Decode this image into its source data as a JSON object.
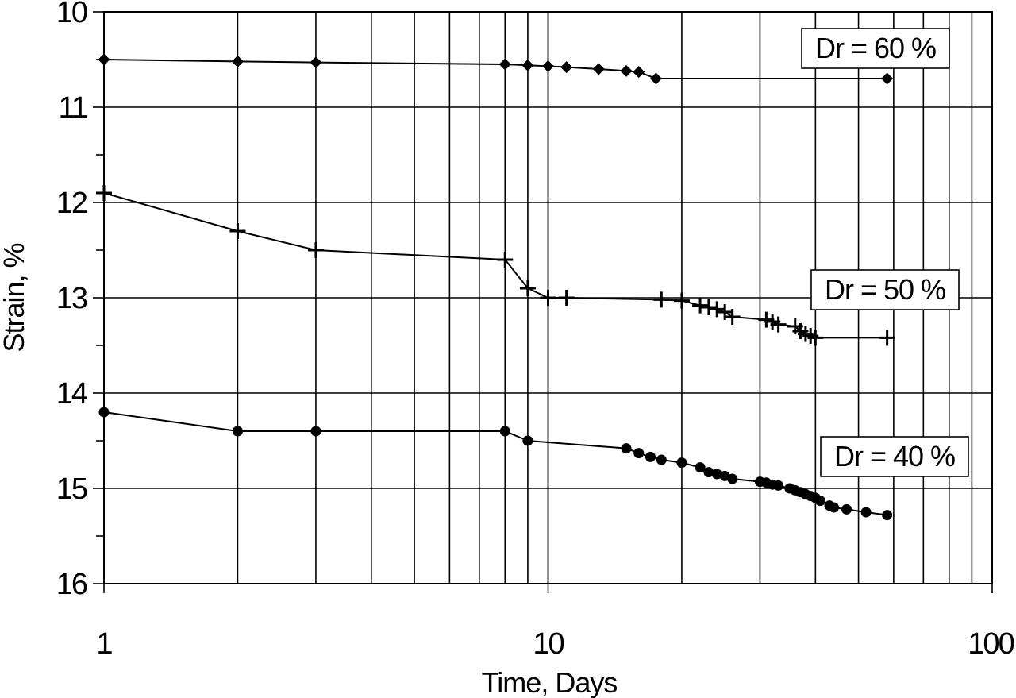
{
  "chart_data": {
    "type": "line",
    "xlabel": "Time,  Days",
    "ylabel": "Strain,  %",
    "xscale": "log",
    "xlim": [
      1,
      100
    ],
    "ylim": [
      10,
      16
    ],
    "y_inverted": true,
    "grid": true,
    "x_tick_labels": [
      "1",
      "10",
      "100"
    ],
    "y_tick_labels": [
      "10",
      "11",
      "12",
      "13",
      "14",
      "15",
      "16"
    ],
    "series": [
      {
        "name": "Dr = 60 %",
        "marker": "diamond",
        "x": [
          1,
          2,
          3,
          8,
          9,
          10,
          11,
          13,
          15,
          16,
          17.5,
          58
        ],
        "y": [
          10.5,
          10.52,
          10.53,
          10.55,
          10.56,
          10.57,
          10.58,
          10.6,
          10.62,
          10.63,
          10.7,
          10.7
        ]
      },
      {
        "name": "Dr = 50 %",
        "marker": "plus",
        "x": [
          1,
          2,
          3,
          8,
          9,
          10,
          11,
          18,
          20,
          22,
          23,
          24,
          25,
          26,
          31,
          32,
          33,
          36,
          37,
          38,
          39,
          40,
          58
        ],
        "y": [
          11.9,
          12.3,
          12.5,
          12.6,
          12.9,
          13.0,
          13.0,
          13.02,
          13.03,
          13.08,
          13.1,
          13.12,
          13.15,
          13.2,
          13.23,
          13.25,
          13.28,
          13.3,
          13.35,
          13.38,
          13.4,
          13.42,
          13.42
        ]
      },
      {
        "name": "Dr = 40 %",
        "marker": "circle",
        "x": [
          1,
          2,
          3,
          8,
          9,
          15,
          16,
          17,
          18,
          20,
          22,
          23,
          24,
          25,
          26,
          30,
          31,
          32,
          33,
          35,
          36,
          37,
          38,
          39,
          40,
          41,
          43,
          44,
          47,
          52,
          58
        ],
        "y": [
          14.2,
          14.4,
          14.4,
          14.4,
          14.5,
          14.58,
          14.63,
          14.67,
          14.7,
          14.73,
          14.78,
          14.83,
          14.85,
          14.87,
          14.9,
          14.93,
          14.94,
          14.96,
          14.97,
          15.0,
          15.02,
          15.04,
          15.06,
          15.08,
          15.1,
          15.13,
          15.18,
          15.2,
          15.22,
          15.25,
          15.28
        ]
      }
    ],
    "legend_labels": [
      {
        "text": "Dr = 60 %",
        "series": 0
      },
      {
        "text": "Dr = 50 %",
        "series": 1
      },
      {
        "text": "Dr = 40 %",
        "series": 2
      }
    ]
  }
}
